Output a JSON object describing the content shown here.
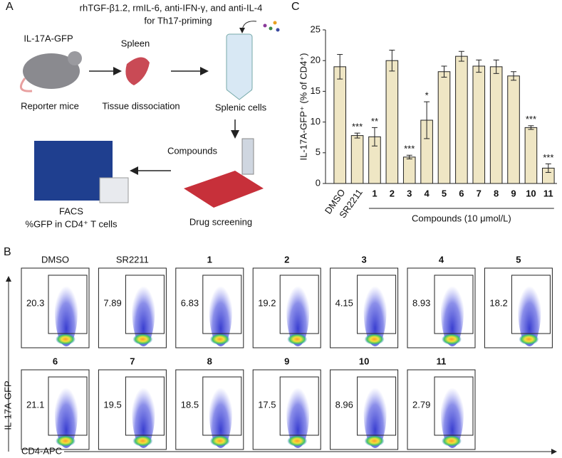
{
  "panel_labels": {
    "a": "A",
    "b": "B",
    "c": "C"
  },
  "panel_a": {
    "priming_line1": "rhTGF-β1.2, rmIL-6, anti-IFN-γ, and anti-IL-4",
    "priming_line2": "for Th17-priming",
    "mouse_label": "IL-17A-GFP",
    "spleen_label": "Spleen",
    "step1": "Reporter mice",
    "step2": "Tissue dissociation",
    "step3": "Splenic cells",
    "compounds_label": "Compounds",
    "step4": "Drug screening",
    "facs_line1": "FACS",
    "facs_line2": "%GFP in CD4⁺ T cells"
  },
  "panel_b": {
    "y_axis_label": "IL-17A-GFP",
    "x_axis_label": "CD4-APC",
    "plots": [
      {
        "label": "DMSO",
        "percent": 20.3
      },
      {
        "label": "SR2211",
        "percent": 7.89
      },
      {
        "label": "1",
        "percent": 6.83
      },
      {
        "label": "2",
        "percent": 19.2
      },
      {
        "label": "3",
        "percent": 4.15
      },
      {
        "label": "4",
        "percent": 8.93
      },
      {
        "label": "5",
        "percent": 18.2
      },
      {
        "label": "6",
        "percent": 21.1
      },
      {
        "label": "7",
        "percent": 19.5
      },
      {
        "label": "8",
        "percent": 18.5
      },
      {
        "label": "9",
        "percent": 17.5
      },
      {
        "label": "10",
        "percent": 8.96
      },
      {
        "label": "11",
        "percent": 2.79
      }
    ]
  },
  "chart_data": {
    "type": "bar",
    "y_label": "IL-17A-GFP⁺ (% of CD4⁺)",
    "x_label": "Compounds (10 μmol/L)",
    "categories": [
      "DMSO",
      "SR2211",
      "1",
      "2",
      "3",
      "4",
      "5",
      "6",
      "7",
      "8",
      "9",
      "10",
      "11"
    ],
    "values": [
      19,
      7.8,
      7.6,
      20,
      4.3,
      10.3,
      18.2,
      20.7,
      19.1,
      19,
      17.5,
      9.1,
      2.5
    ],
    "errors": [
      2,
      0.4,
      1.5,
      1.7,
      0.3,
      3,
      0.9,
      0.8,
      1,
      1.1,
      0.7,
      0.3,
      0.7
    ],
    "annotations": [
      null,
      "***",
      "**",
      null,
      "***",
      "*",
      null,
      null,
      null,
      null,
      null,
      "***",
      "***"
    ],
    "color": "#efe6c4",
    "ylim": [
      0,
      25
    ],
    "yticks": [
      0,
      5,
      10,
      15,
      20,
      25
    ]
  }
}
